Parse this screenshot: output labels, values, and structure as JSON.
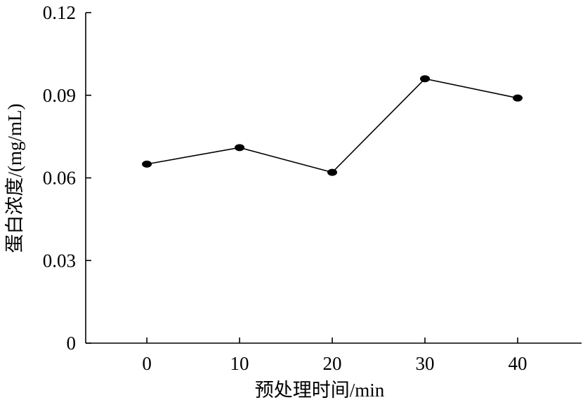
{
  "chart_data": {
    "type": "line",
    "x_label": "预处理时间/min",
    "y_label": "蛋白浓度/(mg/mL)",
    "x": [
      0,
      10,
      20,
      30,
      40
    ],
    "series": [
      {
        "name": "蛋白浓度",
        "color": "#000000",
        "values": [
          0.065,
          0.071,
          0.062,
          0.096,
          0.089
        ]
      }
    ],
    "xlim": [
      -6.6,
      46.9
    ],
    "xticks": [
      0,
      10,
      20,
      30,
      40
    ],
    "ylim": [
      0,
      0.12
    ],
    "yticks": [
      0,
      0.03,
      0.06,
      0.09,
      0.12
    ],
    "grid": false,
    "marker": "ellipse"
  }
}
